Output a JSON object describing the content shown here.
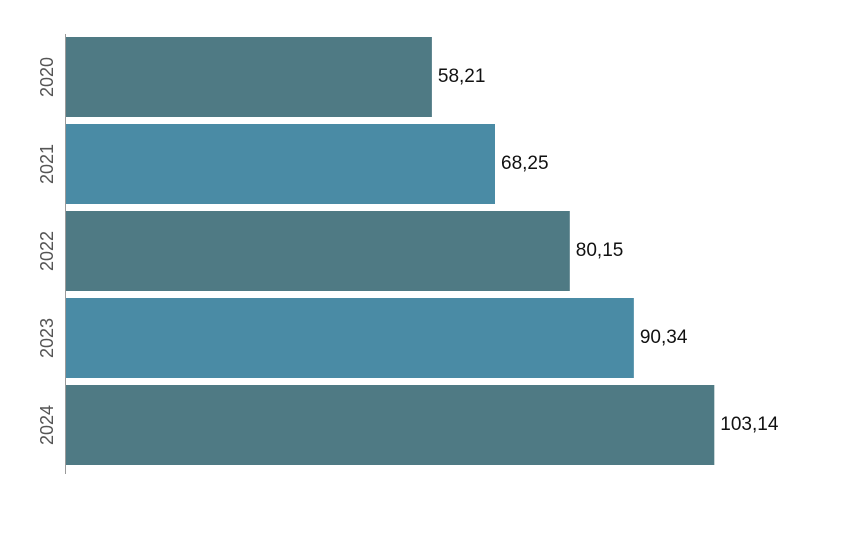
{
  "chart_data": {
    "type": "bar",
    "orientation": "horizontal",
    "categories": [
      "2020",
      "2021",
      "2022",
      "2023",
      "2024"
    ],
    "values": [
      58.21,
      68.25,
      80.15,
      90.34,
      103.14
    ],
    "value_labels": [
      "58,21",
      "68,25",
      "80,15",
      "90,34",
      "103,14"
    ],
    "bar_colors": [
      "#4f7a84",
      "#4a8ba5",
      "#4f7a84",
      "#4a8ba5",
      "#4f7a84"
    ],
    "title": "",
    "xlabel": "",
    "ylabel": "",
    "xlim": [
      0,
      105
    ],
    "grid": false,
    "legend": "none"
  }
}
